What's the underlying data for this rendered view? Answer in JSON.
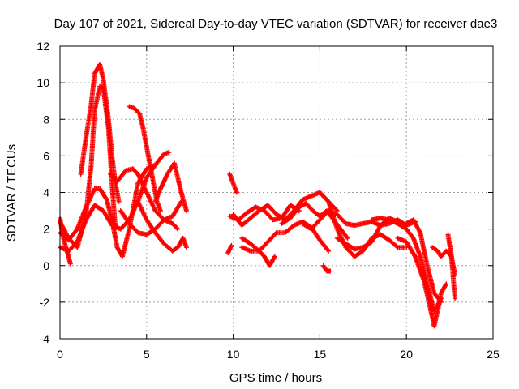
{
  "chart_data": {
    "type": "scatter",
    "title": "Day 107 of 2021, Sidereal Day-to-day VTEC variation (SDTVAR) for receiver dae3",
    "xlabel": "GPS time / hours",
    "ylabel": "SDTVAR / TECUs",
    "xlim": [
      0,
      25
    ],
    "ylim": [
      -4,
      12
    ],
    "x_ticks": [
      "0",
      "5",
      "10",
      "15",
      "20",
      "25"
    ],
    "y_ticks": [
      "-4",
      "-2",
      "0",
      "2",
      "4",
      "6",
      "8",
      "10",
      "12"
    ],
    "grid": true,
    "marker": "+",
    "color": "#ff0000",
    "series": [
      {
        "name": "track-1",
        "x": [
          0.0,
          0.5,
          1.0,
          1.5,
          1.8,
          2.0,
          2.3,
          2.5,
          2.8,
          3.0,
          3.2
        ],
        "y": [
          2.4,
          1.5,
          1.0,
          2.8,
          5.5,
          8.5,
          9.8,
          9.7,
          7.5,
          4.5,
          2.0
        ]
      },
      {
        "name": "track-2",
        "x": [
          1.2,
          1.5,
          1.8,
          2.0,
          2.3,
          2.5,
          2.8,
          3.0,
          3.2,
          3.4
        ],
        "y": [
          5.0,
          7.0,
          8.8,
          10.5,
          11.0,
          10.2,
          8.0,
          6.0,
          4.5,
          3.5
        ]
      },
      {
        "name": "track-3",
        "x": [
          0.0,
          0.5,
          1.0,
          1.5,
          2.0,
          2.3,
          2.7,
          3.0,
          3.3,
          3.6,
          4.0,
          4.5,
          5.0,
          5.5
        ],
        "y": [
          1.8,
          1.4,
          2.0,
          3.2,
          4.2,
          4.2,
          3.6,
          2.5,
          1.0,
          0.5,
          2.0,
          4.5,
          5.3,
          5.5
        ]
      },
      {
        "name": "track-4",
        "x": [
          0.0,
          0.5,
          1.0,
          1.5,
          2.0,
          2.5,
          3.0,
          3.5,
          4.0,
          4.5,
          5.0,
          5.5,
          6.0,
          6.3
        ],
        "y": [
          1.0,
          0.8,
          1.3,
          2.5,
          3.3,
          3.0,
          2.2,
          2.0,
          2.5,
          3.5,
          4.8,
          5.5,
          6.1,
          6.2
        ]
      },
      {
        "name": "track-5",
        "x": [
          2.9,
          3.3,
          3.8,
          4.2,
          4.5,
          5.0,
          5.5,
          6.0,
          6.5,
          7.0
        ],
        "y": [
          5.0,
          4.6,
          5.2,
          5.3,
          5.0,
          4.0,
          3.0,
          2.5,
          2.7,
          3.5
        ]
      },
      {
        "name": "track-6",
        "x": [
          4.0,
          4.3,
          4.6,
          4.8,
          5.0,
          5.2,
          5.4,
          5.6,
          5.8
        ],
        "y": [
          8.7,
          8.6,
          8.3,
          7.5,
          6.5,
          5.5,
          4.5,
          3.5,
          3.0
        ]
      },
      {
        "name": "track-7",
        "x": [
          3.5,
          4.0,
          4.5,
          5.0,
          5.5,
          6.0,
          6.5,
          6.8
        ],
        "y": [
          3.0,
          2.3,
          1.8,
          1.7,
          2.0,
          2.5,
          2.3,
          2.0
        ]
      },
      {
        "name": "track-8",
        "x": [
          4.5,
          5.0,
          5.5,
          6.0,
          6.5,
          6.8,
          7.1,
          7.3
        ],
        "y": [
          3.5,
          2.5,
          1.8,
          1.2,
          0.8,
          1.0,
          1.5,
          1.0
        ]
      },
      {
        "name": "track-9",
        "x": [
          5.5,
          5.8,
          6.2,
          6.6,
          7.0,
          7.3
        ],
        "y": [
          3.5,
          4.2,
          5.0,
          5.6,
          4.0,
          3.0
        ]
      },
      {
        "name": "track-10",
        "x": [
          0.0,
          0.2,
          0.4,
          0.6
        ],
        "y": [
          2.6,
          1.5,
          0.8,
          0.1
        ]
      },
      {
        "name": "track-11",
        "x": [
          9.8,
          10.0,
          10.2
        ],
        "y": [
          5.0,
          4.5,
          4.0
        ]
      },
      {
        "name": "track-12",
        "x": [
          9.8,
          10.3,
          10.8,
          11.3,
          11.8,
          12.3,
          12.8,
          13.3,
          13.8
        ],
        "y": [
          2.7,
          2.5,
          2.9,
          3.2,
          3.0,
          2.5,
          2.6,
          3.3,
          3.0
        ]
      },
      {
        "name": "track-13",
        "x": [
          10.0,
          10.5,
          11.0,
          11.5,
          12.0,
          12.5,
          13.0,
          13.5,
          14.0,
          14.5,
          15.0,
          15.5,
          16.0
        ],
        "y": [
          2.8,
          2.2,
          2.6,
          3.0,
          3.3,
          2.8,
          2.5,
          3.0,
          3.6,
          3.8,
          4.0,
          3.5,
          3.0
        ]
      },
      {
        "name": "track-14",
        "x": [
          10.5,
          11.0,
          11.5,
          12.0,
          12.5,
          13.0,
          13.5,
          14.0,
          14.5,
          15.0,
          15.5
        ],
        "y": [
          1.5,
          1.2,
          0.8,
          1.3,
          1.8,
          1.8,
          2.2,
          2.4,
          2.1,
          1.4,
          0.8
        ]
      },
      {
        "name": "track-15",
        "x": [
          10.5,
          11.0,
          11.5,
          11.8,
          12.1,
          12.4
        ],
        "y": [
          1.0,
          0.8,
          0.8,
          0.5,
          0.0,
          0.5
        ]
      },
      {
        "name": "track-16",
        "x": [
          9.7,
          9.9
        ],
        "y": [
          0.7,
          1.1
        ]
      },
      {
        "name": "track-17",
        "x": [
          12.8,
          13.3,
          13.8,
          14.2,
          14.6,
          15.0,
          15.4,
          15.8,
          16.2,
          16.6
        ],
        "y": [
          2.3,
          2.6,
          3.2,
          3.4,
          3.0,
          2.7,
          3.0,
          2.5,
          2.0,
          1.5
        ]
      },
      {
        "name": "track-18",
        "x": [
          14.0,
          14.5,
          15.0,
          15.5,
          16.0,
          16.5,
          17.0,
          17.5,
          18.0,
          18.5,
          19.0,
          19.5,
          20.0,
          20.5
        ],
        "y": [
          2.3,
          2.0,
          2.5,
          3.0,
          2.8,
          2.3,
          2.2,
          2.3,
          2.4,
          2.2,
          2.3,
          2.5,
          2.2,
          2.4
        ]
      },
      {
        "name": "track-19",
        "x": [
          15.0,
          15.5,
          16.0,
          16.5,
          17.0,
          17.5,
          18.0,
          18.5,
          19.0,
          19.5,
          20.0
        ],
        "y": [
          4.0,
          3.5,
          2.0,
          1.0,
          0.5,
          0.8,
          1.5,
          1.7,
          1.4,
          1.0,
          1.0
        ]
      },
      {
        "name": "track-20",
        "x": [
          15.2,
          15.4,
          15.6
        ],
        "y": [
          0.0,
          -0.3,
          -0.3
        ]
      },
      {
        "name": "track-21",
        "x": [
          16.0,
          16.5,
          17.0,
          17.5,
          18.0,
          18.5,
          19.0,
          19.5,
          20.0
        ],
        "y": [
          1.5,
          1.2,
          0.9,
          1.0,
          1.3,
          2.2,
          2.6,
          2.4,
          2.2
        ]
      },
      {
        "name": "track-22",
        "x": [
          18.0,
          18.5,
          19.0,
          19.5,
          20.0,
          20.4,
          20.8,
          21.2,
          21.6,
          22.0
        ],
        "y": [
          2.5,
          2.6,
          2.5,
          2.3,
          2.0,
          1.5,
          0.5,
          -1.0,
          -2.5,
          -1.8
        ]
      },
      {
        "name": "track-23",
        "x": [
          19.5,
          20.0,
          20.5,
          21.0,
          21.3,
          21.6,
          21.8,
          22.0,
          22.3
        ],
        "y": [
          1.5,
          1.3,
          0.5,
          -0.8,
          -2.0,
          -3.3,
          -2.5,
          -1.5,
          -1.0
        ]
      },
      {
        "name": "track-24",
        "x": [
          20.0,
          20.4,
          20.8,
          21.2,
          21.6,
          22.0
        ],
        "y": [
          2.3,
          2.5,
          1.8,
          0.0,
          -1.5,
          -2.0
        ]
      },
      {
        "name": "track-25",
        "x": [
          21.5,
          21.8,
          22.0,
          22.3,
          22.6,
          22.8
        ],
        "y": [
          1.0,
          0.8,
          0.5,
          0.8,
          0.5,
          -0.5
        ]
      },
      {
        "name": "track-26",
        "x": [
          22.4,
          22.6,
          22.8
        ],
        "y": [
          1.7,
          0.5,
          -1.8
        ]
      }
    ]
  }
}
